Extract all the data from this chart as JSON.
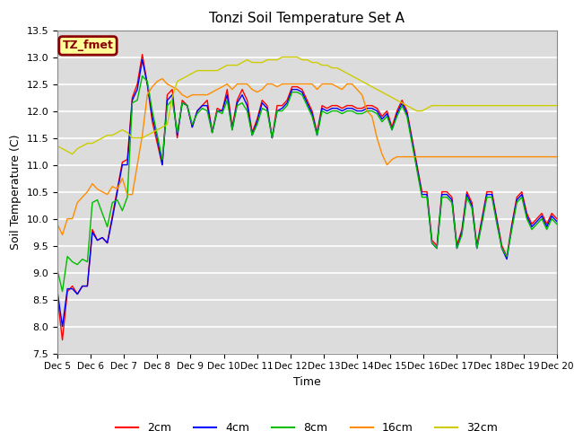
{
  "title": "Tonzi Soil Temperature Set A",
  "xlabel": "Time",
  "ylabel": "Soil Temperature (C)",
  "ylim": [
    7.5,
    13.5
  ],
  "xlim": [
    0,
    15
  ],
  "annotation_text": "TZ_fmet",
  "annotation_bg": "#FFFF99",
  "annotation_border": "#8B0000",
  "bg_color": "#DCDCDC",
  "series": {
    "2cm": {
      "color": "#FF0000",
      "values": [
        8.55,
        7.75,
        8.65,
        8.75,
        8.6,
        8.75,
        8.75,
        9.8,
        9.6,
        9.65,
        9.55,
        10.05,
        10.55,
        11.05,
        11.1,
        12.25,
        12.5,
        13.05,
        12.5,
        11.8,
        11.4,
        11.0,
        12.3,
        12.4,
        11.5,
        12.2,
        12.1,
        11.7,
        12.0,
        12.1,
        12.2,
        11.6,
        12.05,
        12.0,
        12.4,
        11.7,
        12.2,
        12.4,
        12.2,
        11.6,
        11.85,
        12.2,
        12.1,
        11.5,
        12.1,
        12.1,
        12.2,
        12.45,
        12.45,
        12.4,
        12.2,
        12.0,
        11.6,
        12.1,
        12.05,
        12.1,
        12.1,
        12.05,
        12.1,
        12.1,
        12.05,
        12.05,
        12.1,
        12.1,
        12.05,
        11.9,
        12.0,
        11.7,
        12.0,
        12.2,
        12.0,
        11.5,
        11.0,
        10.5,
        10.5,
        9.6,
        9.5,
        10.5,
        10.5,
        10.4,
        9.5,
        9.8,
        10.5,
        10.3,
        9.5,
        10.0,
        10.5,
        10.5,
        10.0,
        9.5,
        9.3,
        9.9,
        10.4,
        10.5,
        10.1,
        9.9,
        10.0,
        10.1,
        9.9,
        10.1,
        10.0
      ]
    },
    "4cm": {
      "color": "#0000FF",
      "values": [
        8.65,
        8.0,
        8.7,
        8.7,
        8.6,
        8.75,
        8.75,
        9.75,
        9.6,
        9.65,
        9.55,
        10.0,
        10.5,
        11.0,
        11.0,
        12.2,
        12.4,
        12.95,
        12.5,
        11.9,
        11.5,
        11.0,
        12.2,
        12.3,
        11.55,
        12.15,
        12.1,
        11.7,
        12.0,
        12.1,
        12.1,
        11.6,
        12.0,
        12.0,
        12.3,
        11.65,
        12.15,
        12.3,
        12.1,
        11.55,
        11.8,
        12.15,
        12.05,
        11.5,
        12.0,
        12.05,
        12.15,
        12.4,
        12.4,
        12.35,
        12.15,
        11.95,
        11.55,
        12.05,
        12.0,
        12.05,
        12.05,
        12.0,
        12.05,
        12.05,
        12.0,
        12.0,
        12.05,
        12.05,
        12.0,
        11.85,
        11.95,
        11.65,
        11.95,
        12.15,
        11.95,
        11.45,
        10.95,
        10.45,
        10.45,
        9.55,
        9.45,
        10.45,
        10.45,
        10.35,
        9.45,
        9.75,
        10.45,
        10.25,
        9.45,
        9.95,
        10.45,
        10.45,
        9.95,
        9.45,
        9.25,
        9.85,
        10.35,
        10.45,
        10.05,
        9.85,
        9.95,
        10.05,
        9.85,
        10.05,
        9.95
      ]
    },
    "8cm": {
      "color": "#00BB00",
      "values": [
        9.05,
        8.65,
        9.3,
        9.2,
        9.15,
        9.25,
        9.2,
        10.3,
        10.35,
        10.1,
        9.85,
        10.3,
        10.35,
        10.15,
        10.4,
        12.15,
        12.2,
        12.65,
        12.55,
        12.0,
        11.55,
        11.1,
        12.1,
        12.2,
        11.6,
        12.15,
        12.1,
        11.75,
        11.95,
        12.05,
        12.0,
        11.6,
        12.0,
        11.95,
        12.2,
        11.65,
        12.1,
        12.15,
        12.0,
        11.55,
        11.75,
        12.05,
        12.0,
        11.5,
        12.0,
        12.0,
        12.1,
        12.35,
        12.35,
        12.3,
        12.1,
        11.9,
        11.55,
        12.0,
        11.95,
        12.0,
        12.0,
        11.95,
        12.0,
        12.0,
        11.95,
        11.95,
        12.0,
        12.0,
        11.95,
        11.8,
        11.9,
        11.65,
        11.9,
        12.1,
        11.9,
        11.4,
        10.9,
        10.4,
        10.4,
        9.55,
        9.45,
        10.4,
        10.4,
        10.3,
        9.45,
        9.7,
        10.4,
        10.2,
        9.45,
        9.9,
        10.4,
        10.4,
        9.9,
        9.45,
        9.3,
        9.8,
        10.3,
        10.4,
        10.0,
        9.8,
        9.9,
        10.0,
        9.8,
        10.0,
        9.9
      ]
    },
    "16cm": {
      "color": "#FF8C00",
      "values": [
        9.9,
        9.7,
        10.0,
        10.0,
        10.3,
        10.4,
        10.5,
        10.65,
        10.55,
        10.5,
        10.45,
        10.6,
        10.55,
        10.75,
        10.45,
        10.45,
        11.0,
        11.55,
        12.3,
        12.45,
        12.55,
        12.6,
        12.5,
        12.45,
        12.4,
        12.3,
        12.25,
        12.3,
        12.3,
        12.3,
        12.3,
        12.35,
        12.4,
        12.45,
        12.5,
        12.4,
        12.5,
        12.5,
        12.5,
        12.4,
        12.35,
        12.4,
        12.5,
        12.5,
        12.45,
        12.5,
        12.5,
        12.5,
        12.5,
        12.5,
        12.5,
        12.5,
        12.4,
        12.5,
        12.5,
        12.5,
        12.45,
        12.4,
        12.5,
        12.5,
        12.4,
        12.3,
        12.0,
        11.9,
        11.5,
        11.2,
        11.0,
        11.1,
        11.15,
        11.15,
        11.15,
        11.15,
        11.15,
        11.15,
        11.15,
        11.15,
        11.15,
        11.15,
        11.15,
        11.15,
        11.15,
        11.15,
        11.15,
        11.15,
        11.15,
        11.15,
        11.15,
        11.15,
        11.15,
        11.15,
        11.15,
        11.15,
        11.15,
        11.15,
        11.15,
        11.15,
        11.15,
        11.15,
        11.15,
        11.15,
        11.15
      ]
    },
    "32cm": {
      "color": "#CCCC00",
      "values": [
        11.35,
        11.3,
        11.25,
        11.2,
        11.3,
        11.35,
        11.4,
        11.4,
        11.45,
        11.5,
        11.55,
        11.55,
        11.6,
        11.65,
        11.6,
        11.5,
        11.5,
        11.5,
        11.55,
        11.6,
        11.65,
        11.7,
        11.75,
        12.25,
        12.55,
        12.6,
        12.65,
        12.7,
        12.75,
        12.75,
        12.75,
        12.75,
        12.75,
        12.8,
        12.85,
        12.85,
        12.85,
        12.9,
        12.95,
        12.9,
        12.9,
        12.9,
        12.95,
        12.95,
        12.95,
        13.0,
        13.0,
        13.0,
        13.0,
        12.95,
        12.95,
        12.9,
        12.9,
        12.85,
        12.85,
        12.8,
        12.8,
        12.75,
        12.7,
        12.65,
        12.6,
        12.55,
        12.5,
        12.45,
        12.4,
        12.35,
        12.3,
        12.25,
        12.2,
        12.15,
        12.1,
        12.05,
        12.0,
        12.0,
        12.05,
        12.1,
        12.1,
        12.1,
        12.1,
        12.1,
        12.1,
        12.1,
        12.1,
        12.1,
        12.1,
        12.1,
        12.1,
        12.1,
        12.1,
        12.1,
        12.1,
        12.1,
        12.1,
        12.1,
        12.1,
        12.1,
        12.1,
        12.1,
        12.1,
        12.1,
        12.1
      ]
    }
  },
  "x_tick_labels": [
    "Dec 5",
    "Dec 6",
    "Dec 7",
    "Dec 8",
    "Dec 9",
    "Dec 10",
    "Dec 11",
    "Dec 12",
    "Dec 13",
    "Dec 14",
    "Dec 15",
    "Dec 16",
    "Dec 17",
    "Dec 18",
    "Dec 19",
    "Dec 20"
  ],
  "yticks": [
    7.5,
    8.0,
    8.5,
    9.0,
    9.5,
    10.0,
    10.5,
    11.0,
    11.5,
    12.0,
    12.5,
    13.0,
    13.5
  ]
}
